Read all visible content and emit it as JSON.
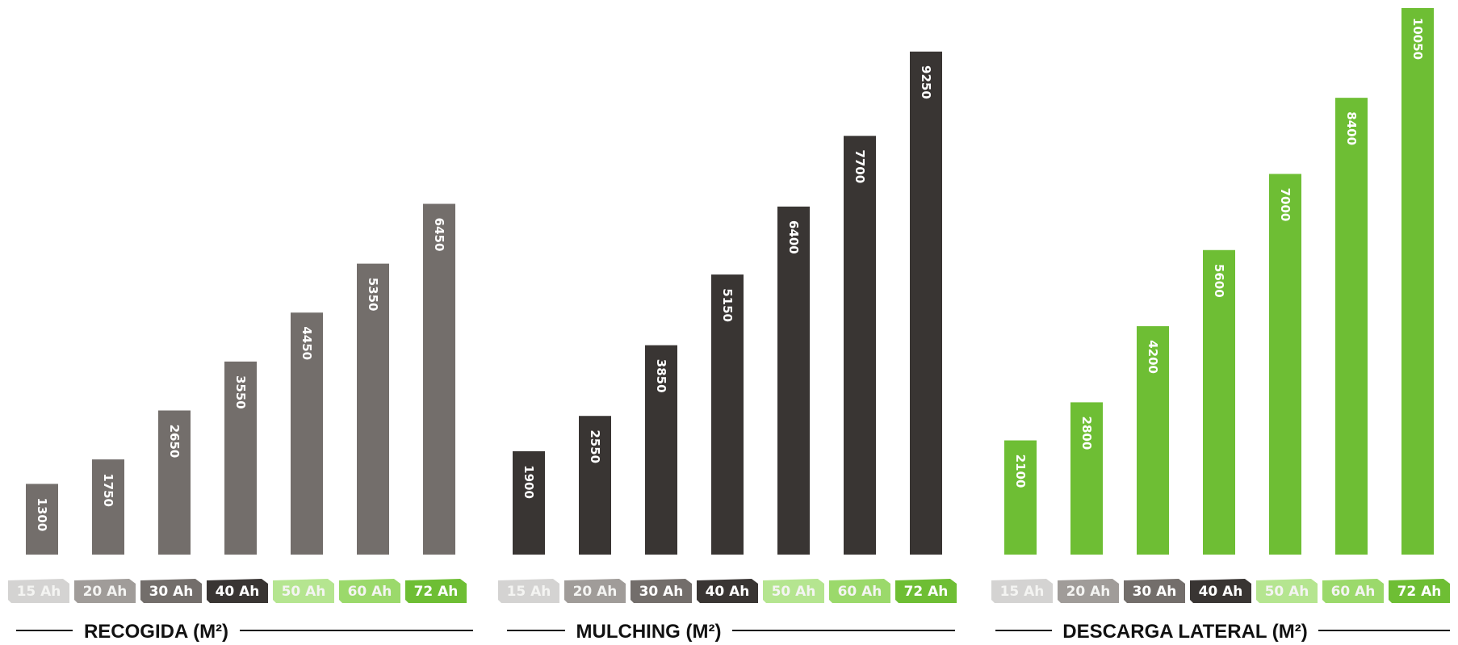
{
  "chart_data": [
    {
      "type": "bar",
      "title": "RECOGIDA (M²)",
      "categories": [
        "15 Ah",
        "20 Ah",
        "30 Ah",
        "40 Ah",
        "50 Ah",
        "60 Ah",
        "72 Ah"
      ],
      "values": [
        1300,
        1750,
        2650,
        3550,
        4450,
        5350,
        6450
      ],
      "value_labels": [
        "1300",
        "1750",
        "2650",
        "3550",
        "4450",
        "5350",
        "6450"
      ],
      "ylim": [
        0,
        10050
      ],
      "bar_color": "#736e6b",
      "tick_colors": [
        "#d4d3d2",
        "#a09c99",
        "#736e6b",
        "#393533",
        "#b5e590",
        "#9bd96b",
        "#6ebe34"
      ],
      "grid": false
    },
    {
      "type": "bar",
      "title": "MULCHING (M²)",
      "categories": [
        "15 Ah",
        "20 Ah",
        "30 Ah",
        "40 Ah",
        "50 Ah",
        "60 Ah",
        "72 Ah"
      ],
      "values": [
        1900,
        2550,
        3850,
        5150,
        6400,
        7700,
        9250
      ],
      "value_labels": [
        "1900",
        "2550",
        "3850",
        "5150",
        "6400",
        "7700",
        "9250"
      ],
      "ylim": [
        0,
        10050
      ],
      "bar_color": "#393533",
      "tick_colors": [
        "#d4d3d2",
        "#a09c99",
        "#736e6b",
        "#393533",
        "#b5e590",
        "#9bd96b",
        "#6ebe34"
      ],
      "grid": false
    },
    {
      "type": "bar",
      "title": "DESCARGA LATERAL (M²)",
      "categories": [
        "15 Ah",
        "20 Ah",
        "30 Ah",
        "40 Ah",
        "50 Ah",
        "60 Ah",
        "72 Ah"
      ],
      "values": [
        2100,
        2800,
        4200,
        5600,
        7000,
        8400,
        10050
      ],
      "value_labels": [
        "2100",
        "2800",
        "4200",
        "5600",
        "7000",
        "8400",
        "10050"
      ],
      "ylim": [
        0,
        10050
      ],
      "bar_color": "#6ebe34",
      "tick_colors": [
        "#d4d3d2",
        "#a09c99",
        "#736e6b",
        "#393533",
        "#b5e590",
        "#9bd96b",
        "#6ebe34"
      ],
      "grid": false
    }
  ]
}
